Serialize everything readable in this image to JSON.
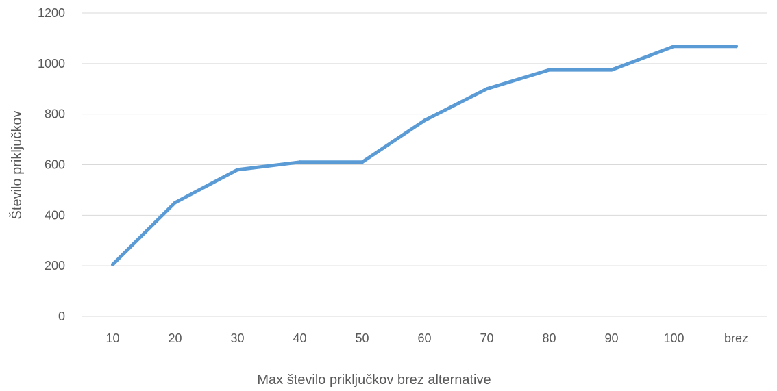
{
  "chart_data": {
    "type": "line",
    "categories": [
      "10",
      "20",
      "30",
      "40",
      "50",
      "60",
      "70",
      "80",
      "90",
      "100",
      "brez"
    ],
    "series": [
      {
        "values": [
          205,
          450,
          580,
          610,
          610,
          775,
          900,
          975,
          975,
          1068,
          1068
        ]
      }
    ],
    "xlabel": "Max število priključkov brez alternative",
    "ylabel": "Število priključkov",
    "ylim": [
      0,
      1200
    ],
    "yticks": [
      "0",
      "200",
      "400",
      "600",
      "800",
      "1000",
      "1200"
    ],
    "grid": true,
    "legend": "none",
    "colors": {
      "series": "#5b9bd5",
      "grid": "#d9d9d9",
      "text": "#595959"
    }
  }
}
